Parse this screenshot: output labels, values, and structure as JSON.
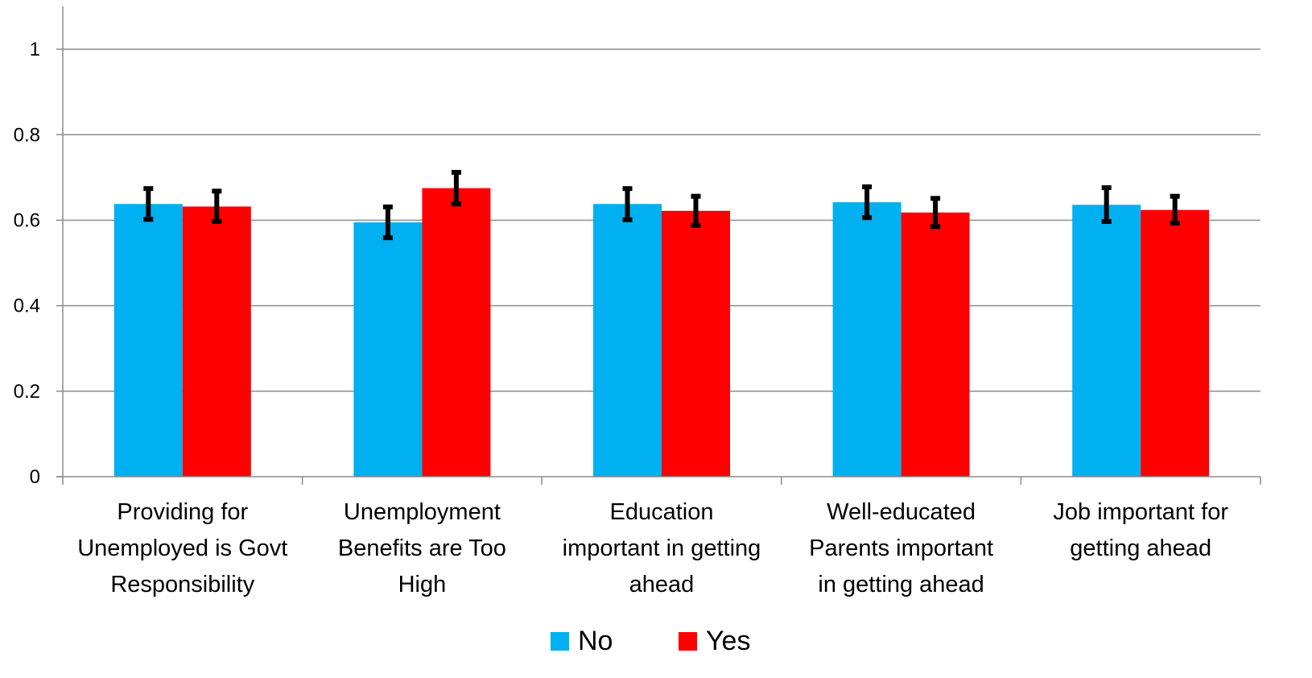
{
  "chart_data": {
    "type": "bar",
    "title": "",
    "xlabel": "",
    "ylabel": "",
    "ylim": [
      0,
      1.1
    ],
    "yticks": [
      0,
      0.2,
      0.4,
      0.6,
      0.8,
      1
    ],
    "ytick_labels": [
      "0",
      "0.2",
      "0.4",
      "0.6",
      "0.8",
      "1"
    ],
    "grid": true,
    "legend_position": "bottom",
    "categories": [
      [
        "Providing for",
        "Unemployed is Govt",
        "Responsibility"
      ],
      [
        "Unemployment",
        "Benefits are Too",
        "High"
      ],
      [
        "Education",
        "important in getting",
        "ahead"
      ],
      [
        "Well-educated",
        "Parents important",
        "in getting ahead"
      ],
      [
        "Job important for",
        "getting ahead"
      ]
    ],
    "series": [
      {
        "name": "No",
        "color": "#00B0F0",
        "values": [
          0.638,
          0.595,
          0.638,
          0.642,
          0.636
        ],
        "error_low": [
          0.602,
          0.559,
          0.601,
          0.606,
          0.597
        ],
        "error_high": [
          0.674,
          0.631,
          0.674,
          0.678,
          0.676
        ]
      },
      {
        "name": "Yes",
        "color": "#FF0000",
        "values": [
          0.632,
          0.675,
          0.622,
          0.618,
          0.624
        ],
        "error_low": [
          0.597,
          0.638,
          0.588,
          0.585,
          0.593
        ],
        "error_high": [
          0.668,
          0.712,
          0.656,
          0.651,
          0.656
        ]
      }
    ]
  }
}
